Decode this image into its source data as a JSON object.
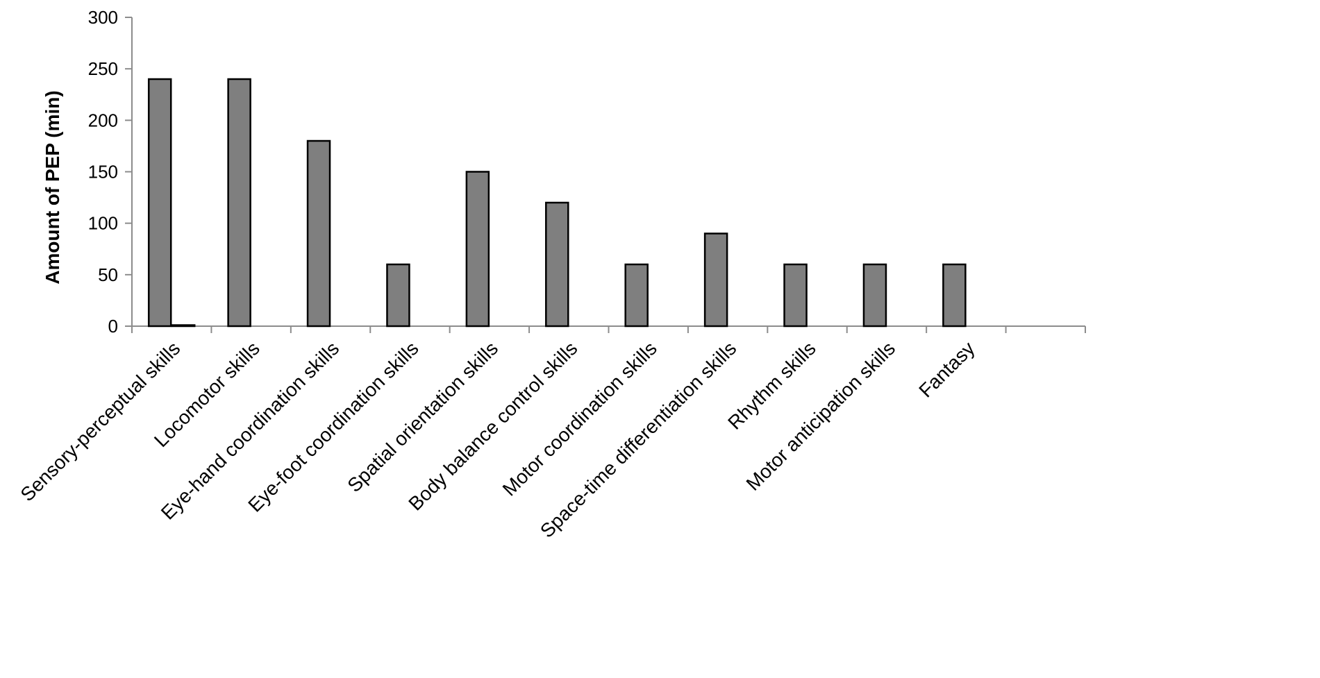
{
  "chart_data": {
    "type": "bar",
    "title": "",
    "xlabel": "",
    "ylabel": "Amount of PEP (min)",
    "ylim": [
      0,
      300
    ],
    "yticks": [
      0,
      50,
      100,
      150,
      200,
      250,
      300
    ],
    "grid": false,
    "legend": "none",
    "categories": [
      "Sensory-perceptual skills",
      "Locomotor skills",
      "Eye-hand coordination skills",
      "Eye-foot coordination skills",
      "Spatial orientation skills",
      "Body balance control skills",
      "Motor coordination skills",
      "Space-time differentiation skills",
      "Rhythm skills",
      "Motor anticipation skills",
      "Fantasy",
      ""
    ],
    "series": [
      {
        "values": [
          240,
          240,
          180,
          60,
          150,
          120,
          60,
          90,
          60,
          60,
          60,
          null
        ]
      },
      {
        "values": [
          1,
          null,
          null,
          null,
          null,
          null,
          null,
          null,
          null,
          null,
          null,
          null
        ]
      }
    ],
    "colors": {
      "bar_fill": "#7f7f7f",
      "bar_stroke": "#000000",
      "axis": "#8c8c8c"
    }
  }
}
